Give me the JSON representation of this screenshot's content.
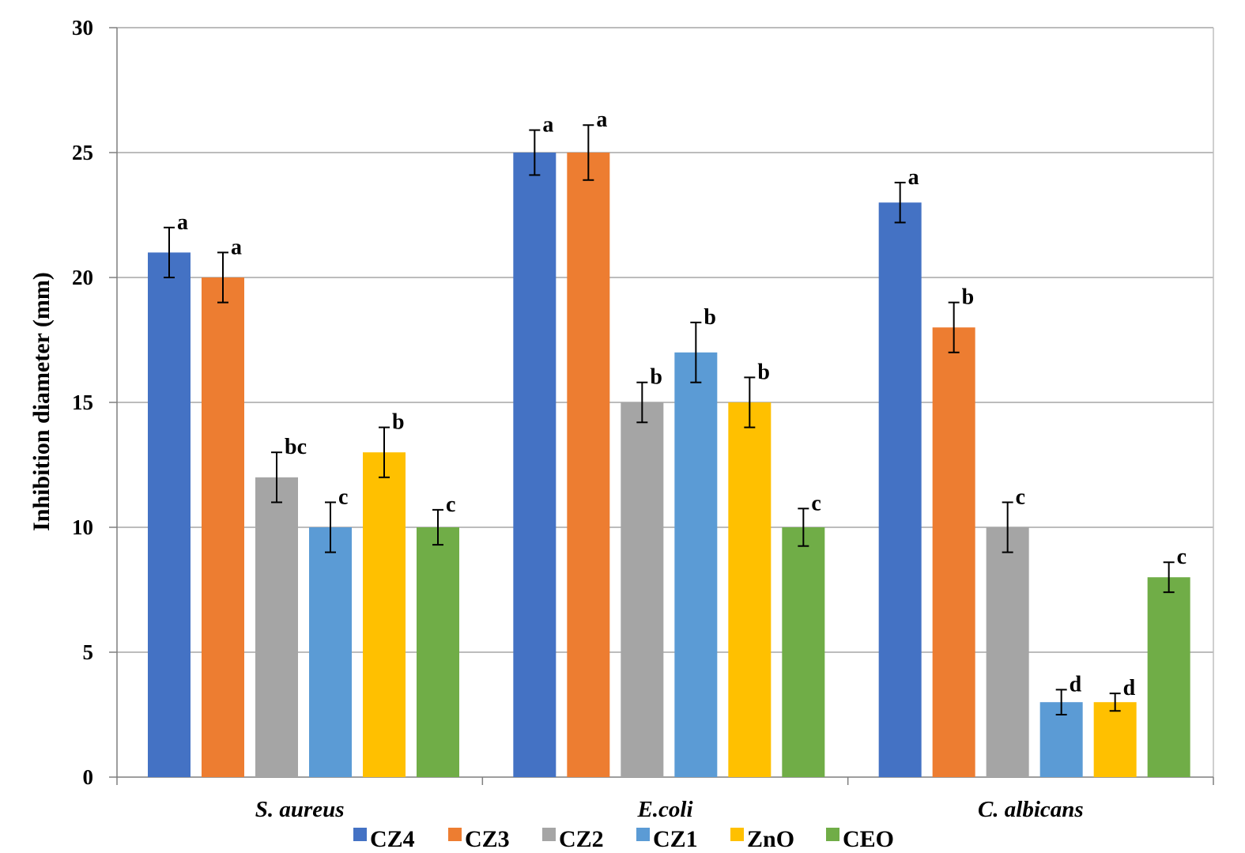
{
  "chart_data": {
    "type": "bar",
    "title": "",
    "xlabel": "",
    "ylabel": "Inhibition diameter (mm)",
    "ylim": [
      0,
      30
    ],
    "yticks": [
      0,
      5,
      10,
      15,
      20,
      25,
      30
    ],
    "grid": "horizontal",
    "legend_position": "bottom",
    "categories": [
      "S. aureus",
      "E.coli",
      "C. albicans"
    ],
    "series": [
      {
        "name": "CZ4",
        "color": "#4472C4",
        "values": [
          21,
          25,
          23
        ],
        "errors": [
          1.0,
          0.9,
          0.8
        ],
        "labels": [
          "a",
          "a",
          "a"
        ]
      },
      {
        "name": "CZ3",
        "color": "#ED7D31",
        "values": [
          20,
          25,
          18
        ],
        "errors": [
          1.0,
          1.1,
          1.0
        ],
        "labels": [
          "a",
          "a",
          "b"
        ]
      },
      {
        "name": "CZ2",
        "color": "#A5A5A5",
        "values": [
          12,
          15,
          10
        ],
        "errors": [
          1.0,
          0.8,
          1.0
        ],
        "labels": [
          "bc",
          "b",
          "c"
        ]
      },
      {
        "name": "CZ1",
        "color": "#5B9BD5",
        "values": [
          10,
          17,
          3
        ],
        "errors": [
          1.0,
          1.2,
          0.5
        ],
        "labels": [
          "c",
          "b",
          "d"
        ]
      },
      {
        "name": "ZnO",
        "color": "#FFC000",
        "values": [
          13,
          15,
          3
        ],
        "errors": [
          1.0,
          1.0,
          0.35
        ],
        "labels": [
          "b",
          "b",
          "d"
        ]
      },
      {
        "name": "CEO",
        "color": "#70AD47",
        "values": [
          10,
          10,
          8
        ],
        "errors": [
          0.7,
          0.75,
          0.6
        ],
        "labels": [
          "c",
          "c",
          "c"
        ]
      }
    ]
  }
}
